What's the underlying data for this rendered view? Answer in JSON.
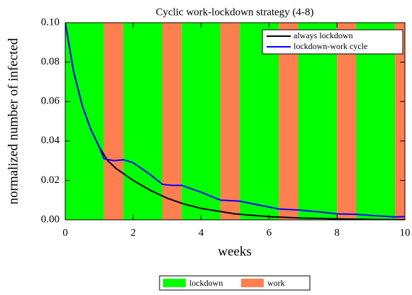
{
  "chart_data": {
    "type": "line",
    "title": "Cyclic work-lockdown strategy (4-8)",
    "xlabel": "weeks",
    "ylabel": "normalized number of infected",
    "xlim": [
      0,
      10
    ],
    "ylim": [
      0,
      0.1
    ],
    "xticks": [
      0,
      2,
      4,
      6,
      8,
      10
    ],
    "yticks": [
      {
        "value": 0,
        "label": "0.00"
      },
      {
        "value": 0.02,
        "label": "0.02"
      },
      {
        "value": 0.04,
        "label": "0.04"
      },
      {
        "value": 0.06,
        "label": "0.06"
      },
      {
        "value": 0.08,
        "label": "0.08"
      },
      {
        "value": 0.1,
        "label": "0.10"
      }
    ],
    "legend_position": "upper right",
    "series": [
      {
        "name": "always lockdown",
        "color": "#000000",
        "x": [
          0,
          0.25,
          0.5,
          0.75,
          1,
          1.25,
          1.5,
          2,
          2.5,
          3,
          3.5,
          4,
          5,
          6,
          7,
          8,
          9,
          10
        ],
        "values": [
          0.1,
          0.075,
          0.058,
          0.046,
          0.037,
          0.03,
          0.026,
          0.02,
          0.015,
          0.011,
          0.008,
          0.0058,
          0.003,
          0.0016,
          0.0009,
          0.0005,
          0.0002,
          0.0001
        ]
      },
      {
        "name": "lockdown-work cycle",
        "color": "#0000ff",
        "x": [
          0,
          0.25,
          0.5,
          0.75,
          1,
          1.14,
          1.43,
          1.71,
          2,
          2.5,
          2.86,
          3.14,
          3.43,
          4,
          4.57,
          5.14,
          5.7,
          6.29,
          6.86,
          7.5,
          8,
          8.57,
          9.2,
          9.71,
          10
        ],
        "values": [
          0.1,
          0.075,
          0.058,
          0.046,
          0.037,
          0.031,
          0.03,
          0.0305,
          0.029,
          0.023,
          0.018,
          0.0175,
          0.0175,
          0.014,
          0.01,
          0.0095,
          0.0075,
          0.0055,
          0.005,
          0.004,
          0.003,
          0.0028,
          0.002,
          0.0015,
          0.0016
        ]
      }
    ],
    "region_legend": [
      {
        "name": "lockdown",
        "color": "#00ff00"
      },
      {
        "name": "work",
        "color": "#ff7f50"
      }
    ],
    "regions": [
      {
        "kind": 0,
        "start": 0,
        "end": 1.14
      },
      {
        "kind": 1,
        "start": 1.14,
        "end": 1.71
      },
      {
        "kind": 0,
        "start": 1.71,
        "end": 2.86
      },
      {
        "kind": 1,
        "start": 2.86,
        "end": 3.43
      },
      {
        "kind": 0,
        "start": 3.43,
        "end": 4.57
      },
      {
        "kind": 1,
        "start": 4.57,
        "end": 5.14
      },
      {
        "kind": 0,
        "start": 5.14,
        "end": 6.29
      },
      {
        "kind": 1,
        "start": 6.29,
        "end": 6.86
      },
      {
        "kind": 0,
        "start": 6.86,
        "end": 8
      },
      {
        "kind": 1,
        "start": 8,
        "end": 8.57
      },
      {
        "kind": 0,
        "start": 8.57,
        "end": 9.71
      },
      {
        "kind": 1,
        "start": 9.71,
        "end": 10
      }
    ]
  }
}
